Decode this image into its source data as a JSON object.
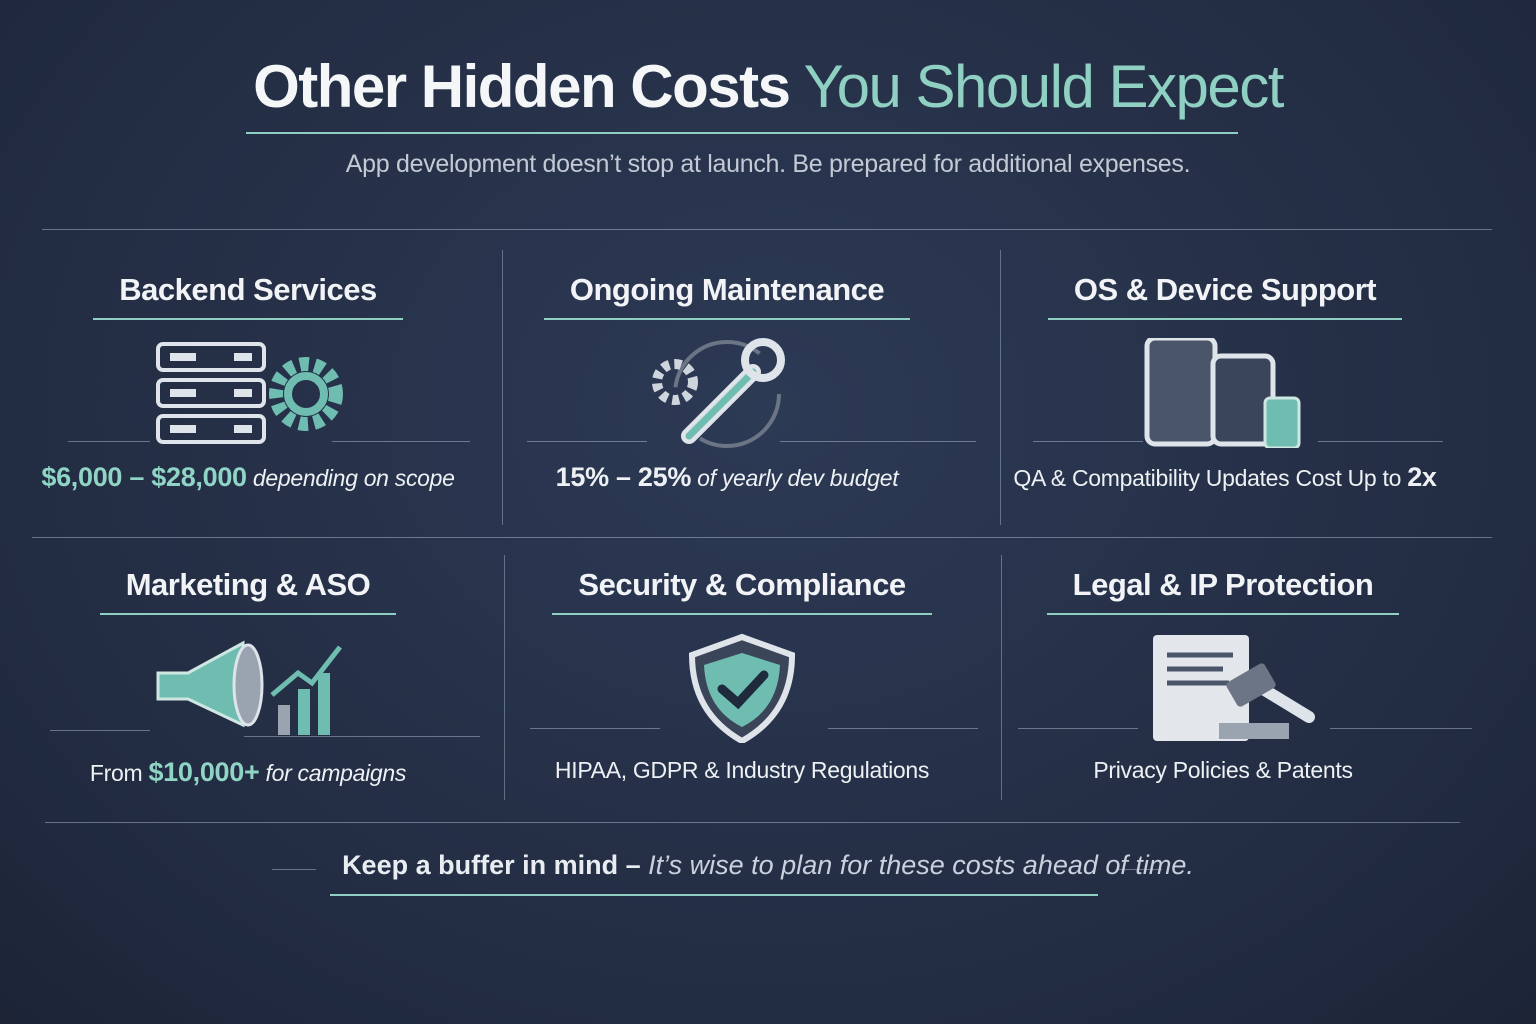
{
  "header": {
    "title_main": "Other Hidden Costs",
    "title_accent": "You Should Expect",
    "subtitle": "App development doesn’t stop at launch. Be prepared for additional expenses."
  },
  "cards": [
    {
      "title": "Backend Services",
      "detail": [
        "$6,000 – $28,000",
        "depending on scope"
      ]
    },
    {
      "title": "Ongoing Maintenance",
      "detail": [
        "15% – 25%",
        "of yearly dev budget"
      ]
    },
    {
      "title": "OS & Device Support",
      "detail": [
        "QA & Compatibility Updates Cost Up to",
        "2x"
      ]
    },
    {
      "title": "Marketing & ASO",
      "detail": [
        "From",
        "$10,000+",
        "for campaigns"
      ]
    },
    {
      "title": "Security & Compliance",
      "detail": [
        "HIPAA, GDPR & Industry Regulations"
      ]
    },
    {
      "title": "Legal & IP Protection",
      "detail": [
        "Privacy Policies & Patents"
      ]
    }
  ],
  "footer": {
    "lead": "Keep a buffer in mind –",
    "rest": "It’s wise to plan for these costs ahead of time."
  }
}
